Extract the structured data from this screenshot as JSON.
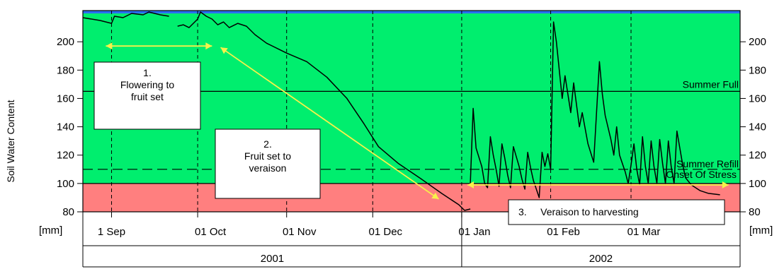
{
  "chart_data": {
    "type": "line",
    "title": "",
    "ylabel": "Soil Water Content",
    "y_unit_left": "[mm]",
    "y_unit_right": "[mm]",
    "ylim": [
      80,
      222
    ],
    "yticks": [
      80,
      100,
      120,
      140,
      160,
      180,
      200
    ],
    "x_range": [
      "2001-08-22",
      "2002-04-08"
    ],
    "month_ticks": [
      {
        "date": "2001-09-01",
        "label": "1 Sep"
      },
      {
        "date": "2001-10-01",
        "label": "01 Oct"
      },
      {
        "date": "2001-11-01",
        "label": "01 Nov"
      },
      {
        "date": "2001-12-01",
        "label": "01 Dec"
      },
      {
        "date": "2002-01-01",
        "label": "01 Jan"
      },
      {
        "date": "2002-02-01",
        "label": "01 Feb"
      },
      {
        "date": "2002-03-01",
        "label": "01 Mar"
      }
    ],
    "years": [
      {
        "label": "2001",
        "start": "2001-08-22",
        "end": "2002-01-01"
      },
      {
        "label": "2002",
        "start": "2002-01-01",
        "end": "2002-04-08"
      }
    ],
    "bands": [
      {
        "from": 80,
        "to": 100,
        "color": "#ff7f7f"
      },
      {
        "from": 100,
        "to": 220,
        "color": "#00ee6e"
      },
      {
        "from": 220,
        "to": 222,
        "color": "#2a6ff0"
      }
    ],
    "reference_lines": [
      {
        "name": "Summer Full",
        "value": 165,
        "style": "solid"
      },
      {
        "name": "Summer Refill",
        "value": 110,
        "style": "dashed"
      },
      {
        "name": "Onset Of Stress",
        "value": 100,
        "style": "solid"
      }
    ],
    "series": [
      {
        "color": "#000000",
        "segments": [
          [
            [
              "2001-08-22",
              217
            ],
            [
              "2001-08-28",
              215
            ],
            [
              "2001-09-01",
              213
            ],
            [
              "2001-09-02",
              218
            ],
            [
              "2001-09-05",
              217
            ],
            [
              "2001-09-08",
              220
            ],
            [
              "2001-09-12",
              219
            ],
            [
              "2001-09-14",
              221
            ],
            [
              "2001-09-18",
              219
            ],
            [
              "2001-09-21",
              218
            ]
          ],
          [
            [
              "2001-09-24",
              211
            ],
            [
              "2001-09-26",
              212
            ],
            [
              "2001-09-28",
              210
            ],
            [
              "2001-10-01",
              216
            ],
            [
              "2001-10-02",
              221
            ],
            [
              "2001-10-04",
              218
            ],
            [
              "2001-10-06",
              216
            ],
            [
              "2001-10-08",
              212
            ],
            [
              "2001-10-10",
              214
            ],
            [
              "2001-10-12",
              210
            ],
            [
              "2001-10-15",
              213
            ],
            [
              "2001-10-18",
              211
            ],
            [
              "2001-10-21",
              205
            ],
            [
              "2001-10-25",
              199
            ],
            [
              "2001-11-01",
              192
            ],
            [
              "2001-11-08",
              186
            ],
            [
              "2001-11-15",
              175
            ],
            [
              "2001-11-22",
              160
            ],
            [
              "2001-11-28",
              142
            ],
            [
              "2001-12-03",
              126
            ],
            [
              "2001-12-10",
              114
            ],
            [
              "2001-12-18",
              103
            ],
            [
              "2001-12-25",
              93
            ],
            [
              "2001-12-31",
              85
            ],
            [
              "2002-01-02",
              81
            ],
            [
              "2002-01-04",
              82
            ]
          ],
          [
            [
              "2002-01-04",
              100
            ],
            [
              "2002-01-05",
              153
            ],
            [
              "2002-01-06",
              125
            ],
            [
              "2002-01-08",
              112
            ],
            [
              "2002-01-09",
              100
            ],
            [
              "2002-01-10",
              97
            ],
            [
              "2002-01-11",
              133
            ],
            [
              "2002-01-12",
              120
            ],
            [
              "2002-01-13",
              110
            ],
            [
              "2002-01-14",
              98
            ],
            [
              "2002-01-15",
              128
            ],
            [
              "2002-01-16",
              118
            ],
            [
              "2002-01-17",
              106
            ],
            [
              "2002-01-18",
              97
            ],
            [
              "2002-01-19",
              126
            ],
            [
              "2002-01-21",
              112
            ],
            [
              "2002-01-22",
              103
            ],
            [
              "2002-01-23",
              96
            ],
            [
              "2002-01-24",
              122
            ],
            [
              "2002-01-25",
              111
            ],
            [
              "2002-01-26",
              102
            ],
            [
              "2002-01-27",
              96
            ],
            [
              "2002-01-28",
              90
            ],
            [
              "2002-01-29",
              122
            ],
            [
              "2002-01-30",
              112
            ],
            [
              "2002-01-31",
              121
            ],
            [
              "2002-02-01",
              110
            ],
            [
              "2002-02-02",
              214
            ],
            [
              "2002-02-03",
              200
            ],
            [
              "2002-02-04",
              180
            ],
            [
              "2002-02-05",
              160
            ],
            [
              "2002-02-06",
              176
            ],
            [
              "2002-02-08",
              150
            ],
            [
              "2002-02-09",
              171
            ],
            [
              "2002-02-11",
              140
            ],
            [
              "2002-02-12",
              150
            ],
            [
              "2002-02-14",
              128
            ],
            [
              "2002-02-16",
              115
            ],
            [
              "2002-02-18",
              186
            ],
            [
              "2002-02-19",
              163
            ],
            [
              "2002-02-20",
              148
            ],
            [
              "2002-02-22",
              131
            ],
            [
              "2002-02-23",
              120
            ],
            [
              "2002-02-24",
              140
            ],
            [
              "2002-02-25",
              120
            ],
            [
              "2002-02-27",
              108
            ],
            [
              "2002-02-28",
              100
            ],
            [
              "2002-03-01",
              113
            ],
            [
              "2002-03-02",
              128
            ],
            [
              "2002-03-03",
              110
            ],
            [
              "2002-03-04",
              99
            ],
            [
              "2002-03-05",
              133
            ],
            [
              "2002-03-06",
              112
            ],
            [
              "2002-03-07",
              100
            ],
            [
              "2002-03-08",
              130
            ],
            [
              "2002-03-09",
              112
            ],
            [
              "2002-03-10",
              100
            ],
            [
              "2002-03-11",
              131
            ],
            [
              "2002-03-12",
              114
            ],
            [
              "2002-03-13",
              100
            ],
            [
              "2002-03-14",
              130
            ],
            [
              "2002-03-15",
              112
            ],
            [
              "2002-03-16",
              100
            ],
            [
              "2002-03-17",
              137
            ],
            [
              "2002-03-19",
              113
            ],
            [
              "2002-03-20",
              104
            ],
            [
              "2002-03-22",
              99
            ],
            [
              "2002-03-25",
              95
            ],
            [
              "2002-03-28",
              93
            ],
            [
              "2002-04-01",
              92
            ]
          ]
        ]
      }
    ],
    "annotations": [
      {
        "id": "flowering",
        "lines": [
          "1.",
          "Flowering to",
          "fruit set"
        ]
      },
      {
        "id": "fruitset",
        "lines": [
          "2.",
          "Fruit set to",
          "veraison"
        ]
      },
      {
        "id": "veraison",
        "lines": [
          "3.     Veraison to harvesting"
        ]
      }
    ],
    "arrows": [
      {
        "id": "arrow-1",
        "from": [
          "2001-08-30",
          197
        ],
        "to": [
          "2001-10-06",
          197
        ]
      },
      {
        "id": "arrow-2",
        "from": [
          "2001-10-09",
          196
        ],
        "to": [
          "2001-12-24",
          89
        ]
      },
      {
        "id": "arrow-3",
        "from": [
          "2002-01-03",
          99
        ],
        "to": [
          "2002-04-04",
          99
        ]
      }
    ],
    "arrow_color": "#f7f24a"
  }
}
